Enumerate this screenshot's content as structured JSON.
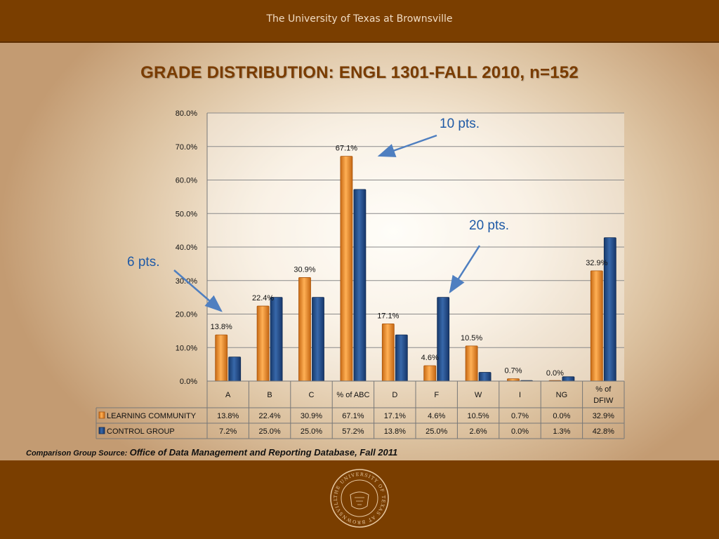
{
  "header": {
    "university": "The University of Texas at Brownsville"
  },
  "title": "GRADE DISTRIBUTION: ENGL 1301-FALL 2010, n=152",
  "annotations": [
    "10 pts.",
    "20 pts.",
    "6 pts."
  ],
  "source": {
    "label": "Comparison Group Source:",
    "value": "Office of Data Management and Reporting Database, Fall 2011"
  },
  "seal": {
    "text": "THE UNIVERSITY OF TEXAS AT BROWNSVILLE"
  },
  "colors": {
    "learning": "#f79a3c",
    "control": "#244f8c",
    "banner": "#7a3e00",
    "title": "#7a3c00",
    "annotation": "#1f5aa6"
  },
  "chart_data": {
    "type": "bar",
    "categories": [
      "A",
      "B",
      "C",
      "% of ABC",
      "D",
      "F",
      "W",
      "I",
      "NG",
      "% of DFIW"
    ],
    "series": [
      {
        "name": "LEARNING COMMUNITY",
        "values": [
          13.8,
          22.4,
          30.9,
          67.1,
          17.1,
          4.6,
          10.5,
          0.7,
          0.0,
          32.9
        ]
      },
      {
        "name": "CONTROL GROUP",
        "values": [
          7.2,
          25.0,
          25.0,
          57.2,
          13.8,
          25.0,
          2.6,
          0.0,
          1.3,
          42.8
        ]
      }
    ],
    "ylim": [
      0,
      80
    ],
    "yticks": [
      "0.0%",
      "10.0%",
      "20.0%",
      "30.0%",
      "40.0%",
      "50.0%",
      "60.0%",
      "70.0%",
      "80.0%"
    ],
    "data_labels": [
      "13.8%",
      "22.4%",
      "30.9%",
      "67.1%",
      "17.1%",
      "4.6%",
      "10.5%",
      "0.7%",
      "0.0%",
      "32.9%"
    ],
    "table": {
      "learning": [
        "13.8%",
        "22.4%",
        "30.9%",
        "67.1%",
        "17.1%",
        "4.6%",
        "10.5%",
        "0.7%",
        "0.0%",
        "32.9%"
      ],
      "control": [
        "7.2%",
        "25.0%",
        "25.0%",
        "57.2%",
        "13.8%",
        "25.0%",
        "2.6%",
        "0.0%",
        "1.3%",
        "42.8%"
      ]
    },
    "grid": true,
    "legend": "data table"
  }
}
